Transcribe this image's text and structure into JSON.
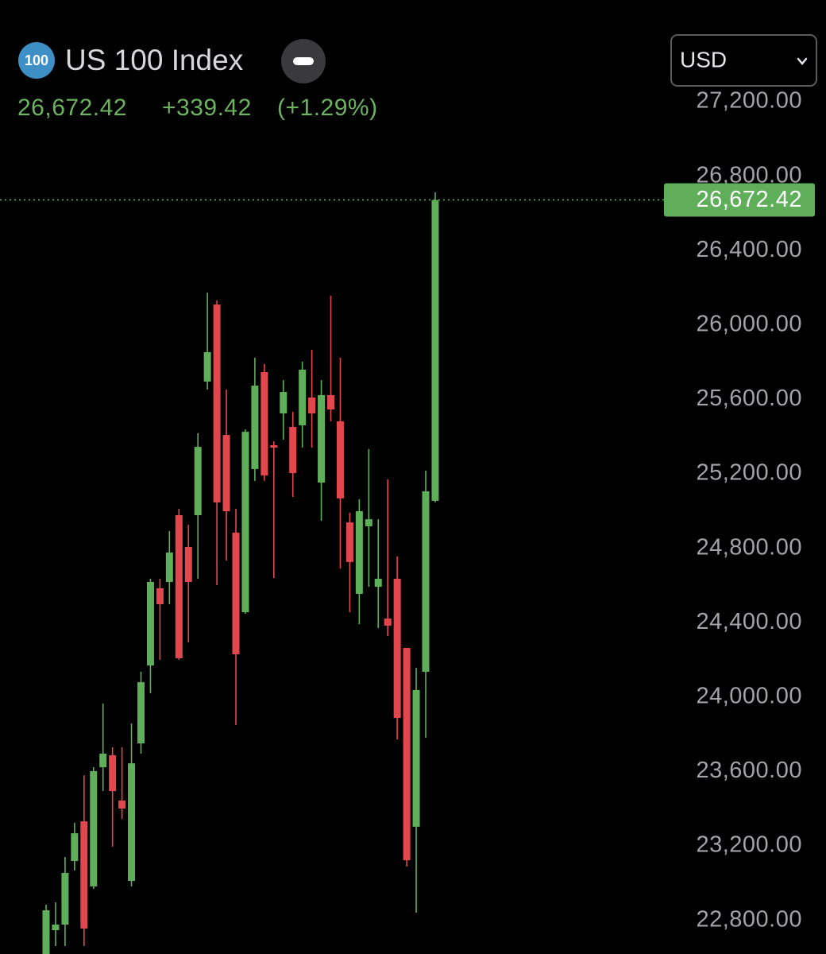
{
  "header": {
    "badge": "100",
    "title": "US 100 Index",
    "change": "+339.42",
    "change_pct": "(+1.29%)",
    "currency": "USD"
  },
  "chart_data": {
    "type": "candlestick",
    "open": [
      22619,
      22747,
      22777,
      23119,
      23332,
      22982,
      23623,
      23687,
      23444,
      23012,
      23751,
      24170,
      24585,
      24619,
      24978,
      24807,
      24978,
      25696,
      26110,
      25409,
      24884,
      24456,
      25226,
      25747,
      25354,
      25525,
      25452,
      25461,
      25610,
      25153,
      25623,
      25482,
      24939,
      24555,
      24918,
      24593,
      24422,
      24636,
      24264,
      23303,
      24136,
      25055
    ],
    "high": [
      22884,
      22897,
      23140,
      23324,
      23580,
      23623,
      23965,
      23730,
      23730,
      23858,
      24136,
      24636,
      24636,
      24892,
      25012,
      24926,
      25418,
      26174,
      26132,
      25653,
      25012,
      25439,
      25824,
      25790,
      25375,
      25704,
      25533,
      25803,
      25867,
      25704,
      26157,
      25824,
      24991,
      25063,
      25333,
      24956,
      25170,
      24756,
      24264,
      24157,
      25217,
      26713
    ],
    "low": [
      22619,
      22662,
      22662,
      23068,
      22662,
      22969,
      23495,
      23196,
      23345,
      22982,
      23696,
      24021,
      24200,
      24499,
      24200,
      24294,
      24636,
      25653,
      24602,
      24734,
      23850,
      24448,
      25162,
      25162,
      24640,
      25384,
      25076,
      25341,
      25341,
      24948,
      25482,
      24691,
      24456,
      24392,
      24593,
      24371,
      24328,
      23773,
      23089,
      22841,
      23781,
      25046
    ],
    "close": [
      22854,
      22777,
      23055,
      23268,
      22756,
      23602,
      23696,
      23495,
      23401,
      23644,
      24080,
      24619,
      24499,
      24777,
      24209,
      24619,
      25345,
      25854,
      25046,
      24999,
      24230,
      25426,
      25674,
      25191,
      25341,
      25640,
      25204,
      25760,
      25525,
      25623,
      25546,
      25068,
      24726,
      24999,
      24956,
      24636,
      24384,
      23888,
      23123,
      24038,
      25106,
      26672.42
    ],
    "up_color": "#5fae5a",
    "down_color": "#e2474d",
    "current_price": {
      "value": 26672.42,
      "label": "26,672.42"
    },
    "ylim": [
      22619,
      27747
    ],
    "yticks": [
      {
        "value": 27200,
        "label": "27,200.00"
      },
      {
        "value": 26800,
        "label": "26,800.00"
      },
      {
        "value": 26400,
        "label": "26,400.00"
      },
      {
        "value": 26000,
        "label": "26,000.00"
      },
      {
        "value": 25600,
        "label": "25,600.00"
      },
      {
        "value": 25200,
        "label": "25,200.00"
      },
      {
        "value": 24800,
        "label": "24,800.00"
      },
      {
        "value": 24400,
        "label": "24,400.00"
      },
      {
        "value": 24000,
        "label": "24,000.00"
      },
      {
        "value": 23600,
        "label": "23,600.00"
      },
      {
        "value": 23200,
        "label": "23,200.00"
      },
      {
        "value": 22800,
        "label": "22,800.00"
      }
    ]
  }
}
